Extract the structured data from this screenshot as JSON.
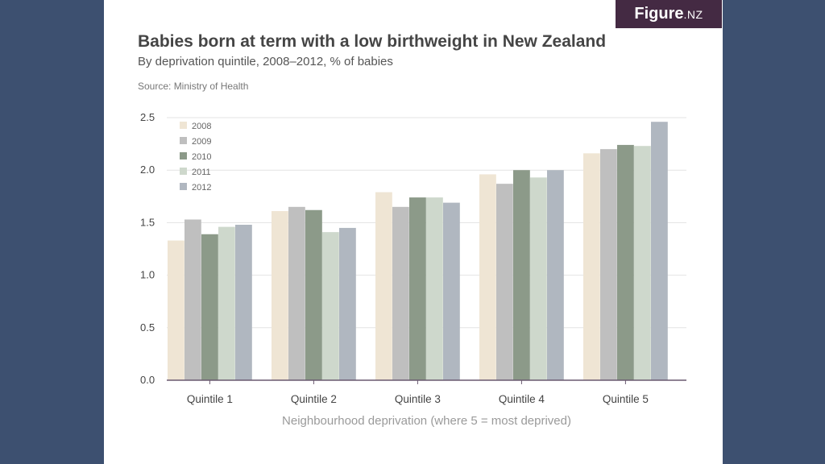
{
  "brand": {
    "name": "Figure",
    "suffix": ".NZ"
  },
  "header": {
    "title": "Babies born at term with a low birthweight in New Zealand",
    "subtitle": "By deprivation quintile, 2008–2012, % of babies",
    "source": "Source: Ministry of Health"
  },
  "colors": {
    "background": "#3d5070",
    "brand": "#442a43",
    "axis": "#6a5a70",
    "grid": "#e3e3e3",
    "series": [
      "#efe5d4",
      "#bfbfbf",
      "#8c9a89",
      "#ced8cc",
      "#b0b7c0"
    ]
  },
  "chart_data": {
    "type": "bar",
    "title": "Babies born at term with a low birthweight in New Zealand",
    "subtitle": "By deprivation quintile, 2008–2012, % of babies",
    "xlabel": "Neighbourhood deprivation (where 5 = most deprived)",
    "ylabel": "",
    "ylim": [
      0,
      2.5
    ],
    "yticks": [
      "0.0",
      "0.5",
      "1.0",
      "1.5",
      "2.0",
      "2.5"
    ],
    "grid": true,
    "legend": "top-left",
    "categories": [
      "Quintile 1",
      "Quintile 2",
      "Quintile 3",
      "Quintile 4",
      "Quintile 5"
    ],
    "series": [
      {
        "name": "2008",
        "values": [
          1.33,
          1.61,
          1.79,
          1.96,
          2.16
        ]
      },
      {
        "name": "2009",
        "values": [
          1.53,
          1.65,
          1.65,
          1.87,
          2.2
        ]
      },
      {
        "name": "2010",
        "values": [
          1.39,
          1.62,
          1.74,
          2.0,
          2.24
        ]
      },
      {
        "name": "2011",
        "values": [
          1.46,
          1.41,
          1.74,
          1.93,
          2.23
        ]
      },
      {
        "name": "2012",
        "values": [
          1.48,
          1.45,
          1.69,
          2.0,
          2.46
        ]
      }
    ]
  }
}
